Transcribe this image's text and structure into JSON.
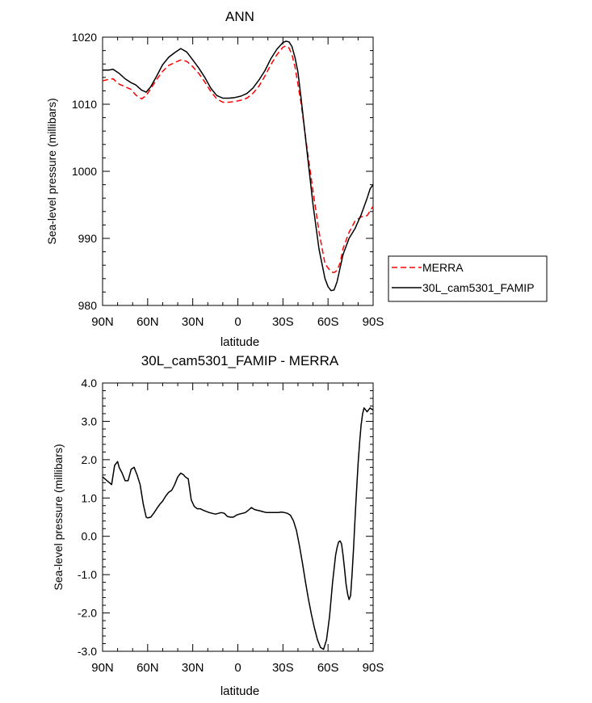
{
  "chart_data": [
    {
      "type": "line",
      "title": "ANN",
      "xlabel": "latitude",
      "ylabel": "Sea-level pressure (millibars)",
      "xlim": [
        90,
        -90
      ],
      "ylim": [
        980,
        1020
      ],
      "xtick_values": [
        90,
        60,
        30,
        0,
        -30,
        -60,
        -90
      ],
      "xtick_labels": [
        "90N",
        "60N",
        "30N",
        "0",
        "30S",
        "60S",
        "90S"
      ],
      "ytick_values": [
        980,
        990,
        1000,
        1010,
        1020
      ],
      "ytick_labels": [
        "980",
        "990",
        "1000",
        "1010",
        "1020"
      ],
      "legend_placement": "right",
      "series": [
        {
          "name": "MERRA",
          "color": "#ff0000",
          "dash": "dashed",
          "x": [
            90,
            86,
            83,
            79,
            75,
            71,
            68,
            64,
            61,
            58,
            54,
            50,
            46,
            42,
            38,
            34,
            30,
            26,
            22,
            18,
            14,
            10,
            6,
            2,
            -2,
            -6,
            -10,
            -14,
            -18,
            -22,
            -26,
            -30,
            -32,
            -34,
            -36,
            -38,
            -40,
            -42,
            -46,
            -50,
            -54,
            -58,
            -62,
            -64,
            -66,
            -68,
            -70,
            -74,
            -78,
            -82,
            -86,
            -88,
            -90
          ],
          "y": [
            1013.5,
            1013.7,
            1013.8,
            1013.0,
            1012.6,
            1012.2,
            1011.4,
            1010.8,
            1011.3,
            1012.3,
            1013.7,
            1014.9,
            1015.8,
            1016.2,
            1016.6,
            1016.4,
            1015.6,
            1014.6,
            1013.3,
            1011.9,
            1010.8,
            1010.3,
            1010.3,
            1010.4,
            1010.6,
            1010.9,
            1011.6,
            1012.7,
            1014.2,
            1015.9,
            1017.4,
            1018.5,
            1018.7,
            1018.4,
            1017.4,
            1015.6,
            1013.0,
            1010.2,
            1003.5,
            997.0,
            991.0,
            986.2,
            985.0,
            984.9,
            985.2,
            986.3,
            988.5,
            990.9,
            992.6,
            993.2,
            993.4,
            994.1,
            994.8
          ]
        },
        {
          "name": "30L_cam5301_FAMIP",
          "color": "#000000",
          "dash": "solid",
          "x": [
            90,
            86,
            83,
            79,
            75,
            71,
            68,
            64,
            61,
            58,
            54,
            50,
            46,
            42,
            38,
            34,
            30,
            26,
            22,
            18,
            14,
            10,
            6,
            2,
            -2,
            -6,
            -10,
            -14,
            -18,
            -22,
            -26,
            -30,
            -32,
            -34,
            -36,
            -38,
            -40,
            -42,
            -46,
            -50,
            -54,
            -58,
            -60,
            -62,
            -64,
            -66,
            -68,
            -70,
            -74,
            -78,
            -82,
            -86,
            -88,
            -90
          ],
          "y": [
            1015.1,
            1015.1,
            1015.2,
            1014.6,
            1013.8,
            1013.2,
            1012.9,
            1012.1,
            1011.8,
            1012.6,
            1014.2,
            1015.9,
            1017.0,
            1017.7,
            1018.3,
            1017.8,
            1016.6,
            1015.4,
            1014.0,
            1012.4,
            1011.3,
            1010.9,
            1010.9,
            1011.0,
            1011.2,
            1011.6,
            1012.4,
            1013.6,
            1015.0,
            1016.8,
            1018.2,
            1019.2,
            1019.4,
            1019.3,
            1018.6,
            1017.0,
            1014.8,
            1011.0,
            1003.0,
            995.0,
            988.4,
            984.0,
            982.8,
            982.2,
            982.3,
            983.5,
            985.6,
            987.6,
            990.0,
            991.5,
            993.5,
            996.0,
            997.4,
            998.0
          ]
        }
      ]
    },
    {
      "type": "line",
      "title": "30L_cam5301_FAMIP - MERRA",
      "xlabel": "latitude",
      "ylabel": "Sea-level pressure (millibars)",
      "xlim": [
        90,
        -90
      ],
      "ylim": [
        -3.0,
        4.0
      ],
      "xtick_values": [
        90,
        60,
        30,
        0,
        -30,
        -60,
        -90
      ],
      "xtick_labels": [
        "90N",
        "60N",
        "30N",
        "0",
        "30S",
        "60S",
        "90S"
      ],
      "ytick_values": [
        -3,
        -2,
        -1,
        0,
        1,
        2,
        3,
        4
      ],
      "ytick_labels": [
        "-3.0",
        "-2.0",
        "-1.0",
        "0.0",
        "1.0",
        "2.0",
        "3.0",
        "4.0"
      ],
      "series": [
        {
          "name": "30L_cam5301_FAMIP - MERRA",
          "color": "#000000",
          "dash": "solid",
          "x": [
            90,
            87,
            84,
            82,
            80,
            79,
            77,
            75,
            73,
            71,
            69,
            68,
            67,
            65,
            63,
            61,
            60,
            58,
            56,
            54,
            52,
            50,
            48,
            46,
            44,
            42,
            40,
            38,
            36,
            35,
            33,
            31,
            29,
            27,
            25,
            23,
            21,
            19,
            17,
            15,
            13,
            11,
            9,
            7,
            5,
            3,
            1,
            -1,
            -3,
            -5,
            -7,
            -9,
            -11,
            -13,
            -14,
            -15,
            -17,
            -19,
            -21,
            -23,
            -25,
            -27,
            -29,
            -31,
            -33,
            -35,
            -37,
            -39,
            -41,
            -43,
            -45,
            -47,
            -49,
            -51,
            -53,
            -55,
            -57,
            -59,
            -61,
            -63,
            -65,
            -66,
            -67,
            -68,
            -69,
            -70,
            -71,
            -72,
            -73,
            -74,
            -75,
            -76,
            -77,
            -78,
            -79,
            -80,
            -81,
            -82,
            -83,
            -84,
            -85,
            -86,
            -87,
            -88,
            -89,
            -90
          ],
          "y": [
            1.55,
            1.45,
            1.35,
            1.85,
            1.95,
            1.8,
            1.65,
            1.45,
            1.45,
            1.75,
            1.8,
            1.7,
            1.6,
            1.35,
            0.85,
            0.5,
            0.48,
            0.5,
            0.6,
            0.72,
            0.83,
            0.92,
            1.05,
            1.15,
            1.2,
            1.35,
            1.55,
            1.65,
            1.6,
            1.55,
            1.5,
            0.95,
            0.78,
            0.72,
            0.72,
            0.68,
            0.65,
            0.62,
            0.6,
            0.58,
            0.6,
            0.62,
            0.6,
            0.52,
            0.5,
            0.5,
            0.55,
            0.58,
            0.6,
            0.62,
            0.68,
            0.75,
            0.7,
            0.68,
            0.67,
            0.66,
            0.64,
            0.62,
            0.62,
            0.62,
            0.62,
            0.62,
            0.63,
            0.62,
            0.6,
            0.55,
            0.4,
            0.15,
            -0.25,
            -0.7,
            -1.2,
            -1.65,
            -2.05,
            -2.4,
            -2.7,
            -2.9,
            -2.95,
            -2.7,
            -2.1,
            -1.2,
            -0.5,
            -0.3,
            -0.15,
            -0.12,
            -0.2,
            -0.5,
            -0.85,
            -1.25,
            -1.5,
            -1.65,
            -1.55,
            -1.0,
            -0.3,
            0.5,
            1.2,
            1.9,
            2.45,
            2.9,
            3.2,
            3.35,
            3.3,
            3.25,
            3.3,
            3.35,
            3.32,
            3.3
          ]
        }
      ]
    }
  ]
}
